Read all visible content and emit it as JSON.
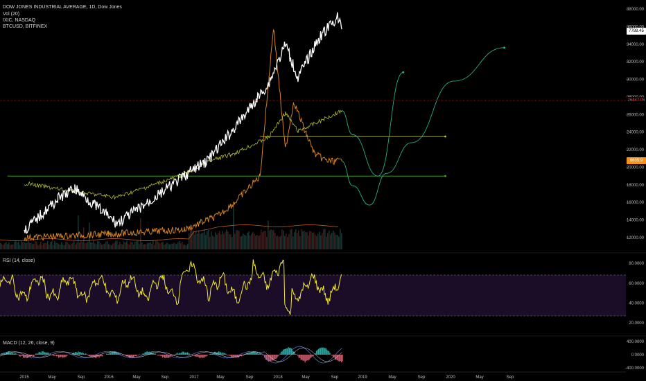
{
  "header": {
    "title": "DOW JONES INDUSTRIAL AVERAGE, 1D, Dow Jones",
    "overlays": [
      "Vol (20)",
      "IXIC, NASDAQ",
      "BTCUSD, BITFINEX"
    ]
  },
  "rsi_panel": {
    "title": "RSI (14, close)",
    "upper_band": 70,
    "lower_band": 30
  },
  "macd_panel": {
    "title": "MACD (12, 26, close, 9)"
  },
  "price_markers": {
    "ixic": {
      "value": "7788.45",
      "color": "#ffffff",
      "text_color": "#000000"
    },
    "djia": {
      "value": "26447.05",
      "color": "#000000",
      "text_color": "#ff4d4d"
    },
    "btc": {
      "value": "6635.9",
      "color": "#f7931a",
      "text_color": "#ffffff"
    }
  },
  "colors": {
    "background": "#000000",
    "djia": "#ffffff",
    "nasdaq": "#b5bd2a",
    "btc": "#d4831f",
    "projection": "#26b08c",
    "support": "#4caf1e",
    "yellow_line": "#c8c83a",
    "rsi": "#f2ea2a",
    "rsi_band_fill": "#1b0d28",
    "macd_line": "#5b7cd6",
    "signal_line": "#e8e8e8"
  },
  "chart_data": {
    "type": "line",
    "y_axis": {
      "ticks": [
        "38000.00",
        "36000.00",
        "34000.00",
        "32000.00",
        "30000.00",
        "28000.00",
        "26000.00",
        "24000.00",
        "22000.00",
        "20000.00",
        "18000.00",
        "16000.00",
        "14000.00",
        "12000.00"
      ],
      "range": [
        11200,
        39000
      ]
    },
    "x_axis": {
      "ticks": [
        "2015",
        "May",
        "Sep",
        "2016",
        "May",
        "Sep",
        "2017",
        "May",
        "Sep",
        "2018",
        "May",
        "Sep",
        "2019",
        "May",
        "Sep",
        "2020",
        "May",
        "Sep"
      ]
    },
    "series": [
      {
        "name": "IXIC, NASDAQ",
        "x": [
          2015.0,
          2015.4,
          2015.6,
          2016.1,
          2016.5,
          2016.9,
          2017.2,
          2017.5,
          2017.9,
          2018.1,
          2018.25,
          2018.5,
          2018.72,
          2018.77
        ],
        "values": [
          12800,
          16400,
          17600,
          13600,
          16200,
          19000,
          21000,
          24500,
          29500,
          34000,
          30200,
          34700,
          37100,
          35700
        ]
      },
      {
        "name": "DOW JONES INDUSTRIAL AVERAGE",
        "x": [
          2015.0,
          2015.6,
          2016.1,
          2016.5,
          2016.9,
          2017.2,
          2017.5,
          2017.9,
          2018.1,
          2018.25,
          2018.5,
          2018.77
        ],
        "values": [
          18200,
          17200,
          16600,
          17900,
          19200,
          20700,
          21600,
          23400,
          26200,
          24100,
          25200,
          26447
        ]
      },
      {
        "name": "BTCUSD, BITFINEX",
        "x": [
          2015.0,
          2016.0,
          2016.9,
          2017.3,
          2017.5,
          2017.8,
          2017.96,
          2018.1,
          2018.2,
          2018.35,
          2018.45,
          2018.6,
          2018.77
        ],
        "values": [
          12000,
          12400,
          12900,
          14500,
          16000,
          19000,
          36000,
          22000,
          27500,
          23700,
          21500,
          20700,
          20700
        ]
      }
    ],
    "projections": [
      {
        "x": [
          2018.77,
          2018.9,
          2019.2,
          2019.5
        ],
        "values": [
          26447,
          23700,
          19000,
          30800
        ]
      },
      {
        "x": [
          2018.77,
          2018.9,
          2019.1,
          2019.3,
          2019.6,
          2020.1,
          2020.7
        ],
        "values": [
          20700,
          17900,
          15700,
          19300,
          22800,
          29800,
          33600
        ]
      }
    ],
    "levels": [
      {
        "value": 19000,
        "from": 2014.8,
        "to": 2020.0
      },
      {
        "value": 23500,
        "from": 2017.8,
        "to": 2020.0
      }
    ],
    "rsi": {
      "ticks": [
        "80.0000",
        "60.0000",
        "40.0000",
        "20.0000"
      ],
      "range": [
        20,
        85
      ]
    },
    "macd": {
      "ticks": [
        "400.0000",
        "0.0000",
        "-400.0000"
      ]
    }
  }
}
